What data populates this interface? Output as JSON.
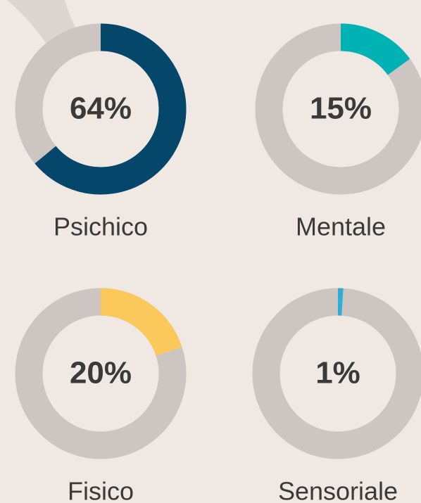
{
  "chart_data": [
    {
      "type": "donut",
      "title": "Psichico",
      "values": [
        64
      ],
      "value_labels": [
        "64%"
      ],
      "color": "#05466b"
    },
    {
      "type": "donut",
      "title": "Mentale",
      "values": [
        15
      ],
      "value_labels": [
        "15%"
      ],
      "color": "#00b2b4"
    },
    {
      "type": "donut",
      "title": "Fisico",
      "values": [
        20
      ],
      "value_labels": [
        "20%"
      ],
      "color": "#fbc95b"
    },
    {
      "type": "donut",
      "title": "Sensoriale",
      "values": [
        1
      ],
      "value_labels": [
        "1%"
      ],
      "color": "#2eaed0"
    }
  ]
}
